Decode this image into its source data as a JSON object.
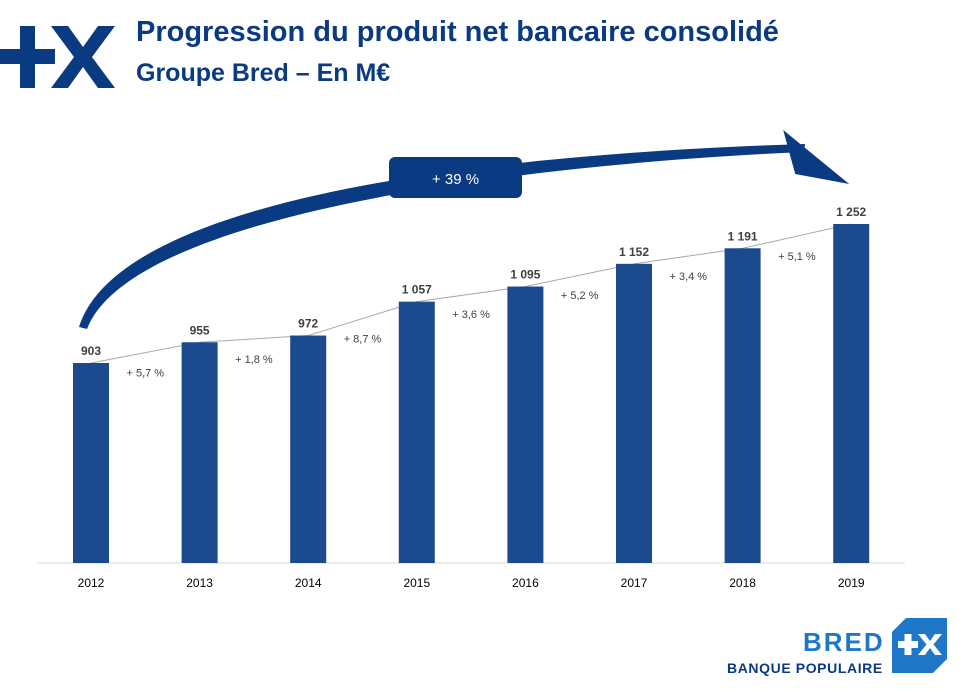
{
  "header": {
    "title": "Progression du produit net bancaire consolidé",
    "subtitle": "Groupe Bred – En M€"
  },
  "brand": {
    "name": "BRED",
    "tagline": "BANQUE POPULAIRE",
    "logo_icon": "plus-x-icon"
  },
  "colors": {
    "bar": "#1b4a8f",
    "title": "#0a3a82",
    "arrow": "#0a3a82",
    "callout": "#0a3a82",
    "connector": "#aaaaaa",
    "brand_light": "#1e77c8"
  },
  "chart_data": {
    "type": "bar",
    "categories": [
      "2012",
      "2013",
      "2014",
      "2015",
      "2016",
      "2017",
      "2018",
      "2019"
    ],
    "values": [
      903,
      955,
      972,
      1057,
      1095,
      1152,
      1191,
      1252
    ],
    "value_labels": [
      "903",
      "955",
      "972",
      "1 057",
      "1 095",
      "1 152",
      "1 191",
      "1 252"
    ],
    "growth_labels": [
      "+ 5,7 %",
      "+ 1,8 %",
      "+ 8,7 %",
      "+ 3,6 %",
      "+ 5,2 %",
      "+ 3,4 %",
      "+ 5,1 %"
    ],
    "total_growth_label": "+ 39 %",
    "ylim": [
      0,
      1300
    ],
    "grid": false,
    "legend": "none"
  }
}
